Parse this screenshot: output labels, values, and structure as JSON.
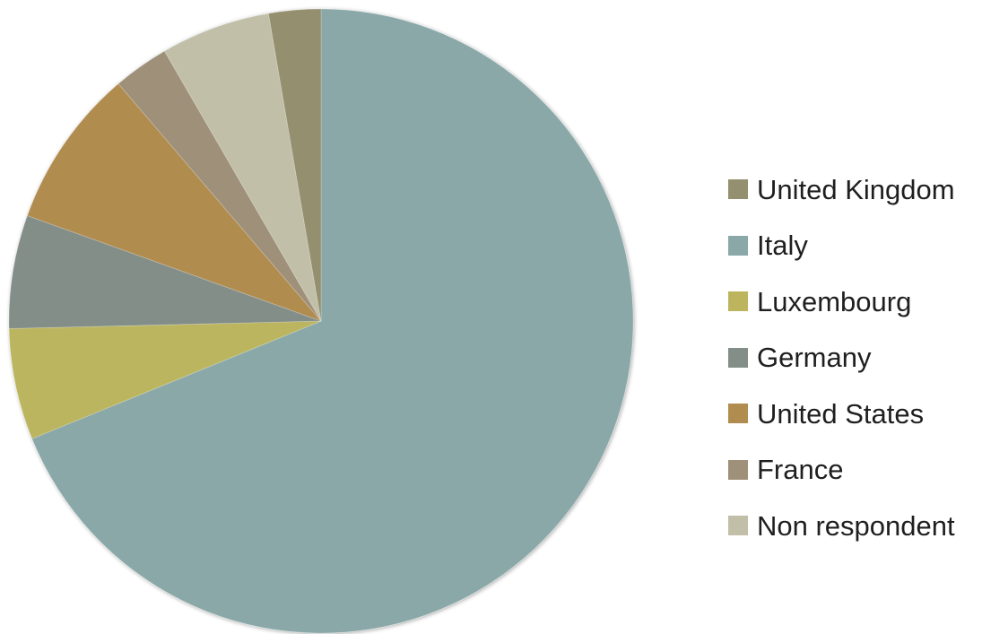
{
  "chart_data": {
    "type": "pie",
    "title": "",
    "start_angle_deg": 0,
    "direction": "clockwise",
    "legend_position": "right",
    "slices": [
      {
        "label": "Italy",
        "value": 71.6,
        "color": "#8aa8a8"
      },
      {
        "label": "Luxembourg",
        "value": 6.0,
        "color": "#bcb55e"
      },
      {
        "label": "Germany",
        "value": 6.1,
        "color": "#838e89"
      },
      {
        "label": "United States",
        "value": 8.6,
        "color": "#b18c4f"
      },
      {
        "label": "France",
        "value": 3.0,
        "color": "#9e9079"
      },
      {
        "label": "Non respondent",
        "value": 5.9,
        "color": "#c2bfa9"
      },
      {
        "label": "United Kingdom",
        "value": 2.8,
        "color": "#948f6e"
      }
    ]
  },
  "legend": {
    "items": [
      {
        "label": "United Kingdom",
        "color": "#948f6e"
      },
      {
        "label": "Italy",
        "color": "#8aa8a8"
      },
      {
        "label": "Luxembourg",
        "color": "#bcb55e"
      },
      {
        "label": "Germany",
        "color": "#838e89"
      },
      {
        "label": "United States",
        "color": "#b18c4f"
      },
      {
        "label": "France",
        "color": "#9e9079"
      },
      {
        "label": "Non respondent",
        "color": "#c2bfa9"
      }
    ]
  }
}
